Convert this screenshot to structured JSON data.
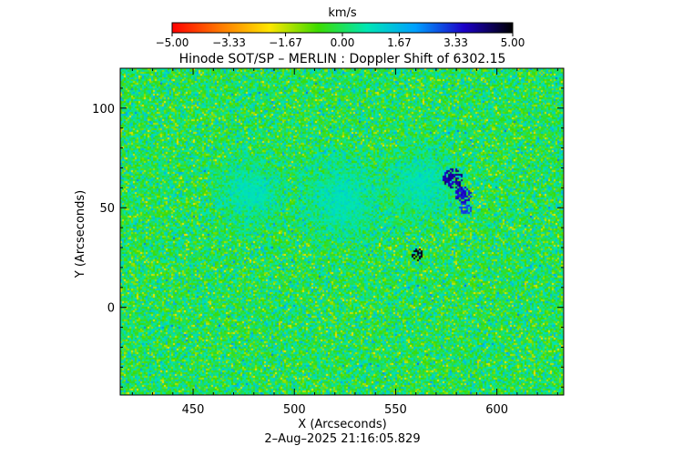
{
  "chart_data": {
    "type": "heatmap",
    "title": "Hinode SOT/SP – MERLIN : Doppler Shift of 6302.15",
    "xlabel": "X (Arcseconds)",
    "ylabel": "Y (Arcseconds)",
    "timestamp": "2–Aug–2025 21:16:05.829",
    "xlim": [
      414,
      633
    ],
    "ylim": [
      -44,
      120
    ],
    "x_ticks": [
      450,
      500,
      550,
      600
    ],
    "x_tick_labels": [
      "450",
      "500",
      "550",
      "600"
    ],
    "y_ticks": [
      0,
      50,
      100
    ],
    "y_tick_labels": [
      "0",
      "50",
      "100"
    ],
    "colorbar": {
      "unit": "km/s",
      "range": [
        -5.0,
        5.0
      ],
      "ticks": [
        -5.0,
        -3.33,
        -1.67,
        0.0,
        1.67,
        3.33,
        5.0
      ],
      "tick_labels": [
        "−5.00",
        "−3.33",
        "−1.67",
        "0.00",
        "1.67",
        "3.33",
        "5.00"
      ],
      "colors": [
        "#ff0000",
        "#ff7a00",
        "#ffe600",
        "#3cdc00",
        "#00e6b4",
        "#00a0ff",
        "#1c00c8",
        "#000000"
      ]
    },
    "features": [
      {
        "kind": "quiet_region",
        "center": [
          478,
          58
        ],
        "radius": 24,
        "value": 0.6
      },
      {
        "kind": "quiet_region",
        "center": [
          523,
          55
        ],
        "radius": 30,
        "value": 0.7
      },
      {
        "kind": "quiet_region",
        "center": [
          562,
          62
        ],
        "radius": 26,
        "value": 0.9
      },
      {
        "kind": "blueshift_patch",
        "center": [
          578,
          65
        ],
        "radius": 5,
        "value": 3.9
      },
      {
        "kind": "blueshift_patch",
        "center": [
          583,
          57
        ],
        "radius": 4,
        "value": 3.5
      },
      {
        "kind": "blueshift_patch",
        "center": [
          584,
          50
        ],
        "radius": 3,
        "value": 3.0
      },
      {
        "kind": "blueshift_patch",
        "center": [
          560,
          27
        ],
        "radius": 3,
        "value": 4.8
      }
    ]
  }
}
